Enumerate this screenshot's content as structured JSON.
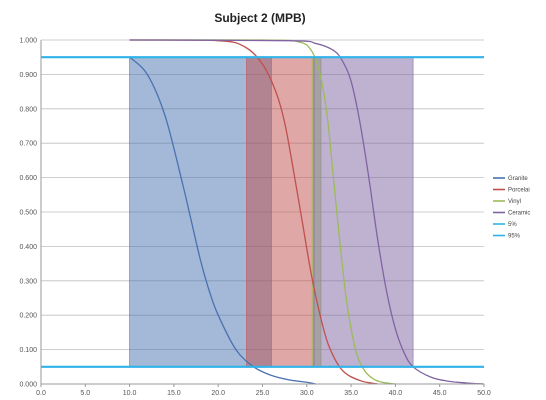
{
  "chart_data": {
    "type": "line",
    "title": "Subject 2 (MPB)",
    "xlim": [
      0,
      50
    ],
    "ylim": [
      0,
      1
    ],
    "x_ticks": [
      "0.0",
      "5.0",
      "10.0",
      "15.0",
      "20.0",
      "25.0",
      "30.0",
      "35.0",
      "40.0",
      "45.0",
      "50.0"
    ],
    "y_ticks": [
      "0.000",
      "0.100",
      "0.200",
      "0.300",
      "0.400",
      "0.500",
      "0.600",
      "0.700",
      "0.800",
      "0.900",
      "1.000"
    ],
    "grid": "horizontal",
    "legend_position": "right",
    "series": [
      {
        "name": "Granite",
        "color": "#4a72b0",
        "x": [
          10.0,
          12.0,
          14.0,
          16.0,
          17.0,
          18.0,
          19.0,
          20.0,
          22.0,
          24.0,
          26.0,
          28.0,
          30.0,
          31.0
        ],
        "y": [
          0.95,
          0.9,
          0.78,
          0.58,
          0.47,
          0.36,
          0.27,
          0.2,
          0.1,
          0.05,
          0.025,
          0.012,
          0.005,
          0.0
        ]
      },
      {
        "name": "Porcelai",
        "color": "#c0504d",
        "x": [
          10.0,
          20.0,
          23.0,
          25.0,
          26.5,
          27.5,
          28.5,
          29.5,
          30.5,
          31.5,
          32.5,
          34.0,
          36.0,
          38.0
        ],
        "y": [
          1.0,
          0.998,
          0.98,
          0.93,
          0.85,
          0.76,
          0.62,
          0.47,
          0.32,
          0.2,
          0.11,
          0.04,
          0.01,
          0.0
        ]
      },
      {
        "name": "Vinyl",
        "color": "#9bbb59",
        "x": [
          10.0,
          25.0,
          29.0,
          30.5,
          31.5,
          32.3,
          33.0,
          33.7,
          34.5,
          35.5,
          36.5,
          37.5,
          38.5,
          40.0
        ],
        "y": [
          1.0,
          1.0,
          0.995,
          0.97,
          0.9,
          0.78,
          0.6,
          0.42,
          0.24,
          0.1,
          0.04,
          0.015,
          0.005,
          0.0
        ]
      },
      {
        "name": "Ceramic",
        "color": "#8064a2",
        "x": [
          10.0,
          28.0,
          31.0,
          33.0,
          34.0,
          35.0,
          36.0,
          37.0,
          38.0,
          39.0,
          40.0,
          41.0,
          42.0,
          44.0,
          46.0,
          48.0,
          50.0
        ],
        "y": [
          1.0,
          0.998,
          0.99,
          0.97,
          0.94,
          0.88,
          0.76,
          0.6,
          0.42,
          0.27,
          0.16,
          0.09,
          0.05,
          0.02,
          0.008,
          0.003,
          0.0
        ]
      },
      {
        "name": "5%",
        "color": "#2fb3e8",
        "x": [
          0,
          50
        ],
        "y": [
          0.05,
          0.05
        ]
      },
      {
        "name": "95%",
        "color": "#2fb3e8",
        "x": [
          0,
          50
        ],
        "y": [
          0.95,
          0.95
        ]
      }
    ],
    "bands": [
      {
        "x0": 10.0,
        "x1": 26.0,
        "color": "#4a72b0"
      },
      {
        "x0": 23.2,
        "x1": 30.8,
        "color": "#c0504d"
      },
      {
        "x0": 30.6,
        "x1": 31.6,
        "color": "#9bbb59"
      },
      {
        "x0": 30.8,
        "x1": 42.0,
        "color": "#8064a2"
      }
    ]
  }
}
